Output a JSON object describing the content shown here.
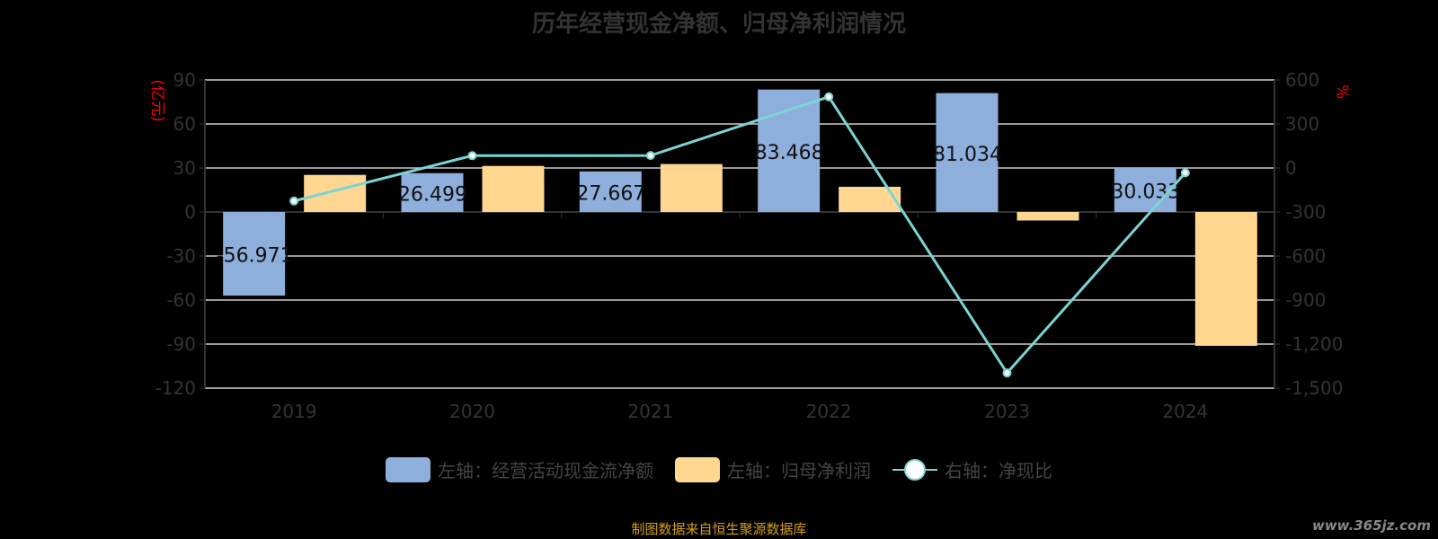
{
  "title": "历年经营现金净额、归母净利润情况",
  "footer": "制图数据来自恒生聚源数据库",
  "watermark": "www.365jz.com",
  "colors": {
    "cash": "#8eaedb",
    "profit": "#ffd791",
    "ratio": "#7dd3d3",
    "unit": "#ff0000",
    "axis": "#333333",
    "grid": "#cccccc"
  },
  "chart_data": {
    "type": "bar",
    "title": "历年经营现金净额、归母净利润情况",
    "categories": [
      "2019",
      "2020",
      "2021",
      "2022",
      "2023",
      "2024"
    ],
    "left_axis": {
      "label": "(亿元)",
      "ylim": [
        -120,
        90
      ],
      "ticks": [
        "90",
        "60",
        "30",
        "0",
        "-30",
        "-60",
        "-90",
        "-120"
      ],
      "tick_values": [
        90,
        60,
        30,
        0,
        -30,
        -60,
        -90,
        -120
      ]
    },
    "right_axis": {
      "label": "%",
      "ylim": [
        -1500,
        600
      ],
      "ticks": [
        "600",
        "300",
        "0",
        "-300",
        "-600",
        "-900",
        "-1,200",
        "-1,500"
      ],
      "tick_values": [
        600,
        300,
        0,
        -300,
        -600,
        -900,
        -1200,
        -1500
      ]
    },
    "series": [
      {
        "name": "左轴：经营活动现金流净额",
        "type": "bar",
        "axis": "left",
        "values": [
          -56.971,
          26.499,
          27.667,
          83.468,
          81.034,
          30.033
        ],
        "labels": [
          "-56.971",
          "26.499",
          "27.667",
          "83.468",
          "81.034",
          "30.033"
        ]
      },
      {
        "name": "左轴：归母净利润",
        "type": "bar",
        "axis": "left",
        "values": [
          25.3,
          31.4,
          32.7,
          17.2,
          -5.8,
          -91.2
        ]
      },
      {
        "name": "右轴：净现比",
        "type": "line",
        "axis": "right",
        "values": [
          -225,
          84,
          85,
          485,
          -1397,
          -33
        ]
      }
    ],
    "grid": true,
    "legend_position": "bottom"
  }
}
